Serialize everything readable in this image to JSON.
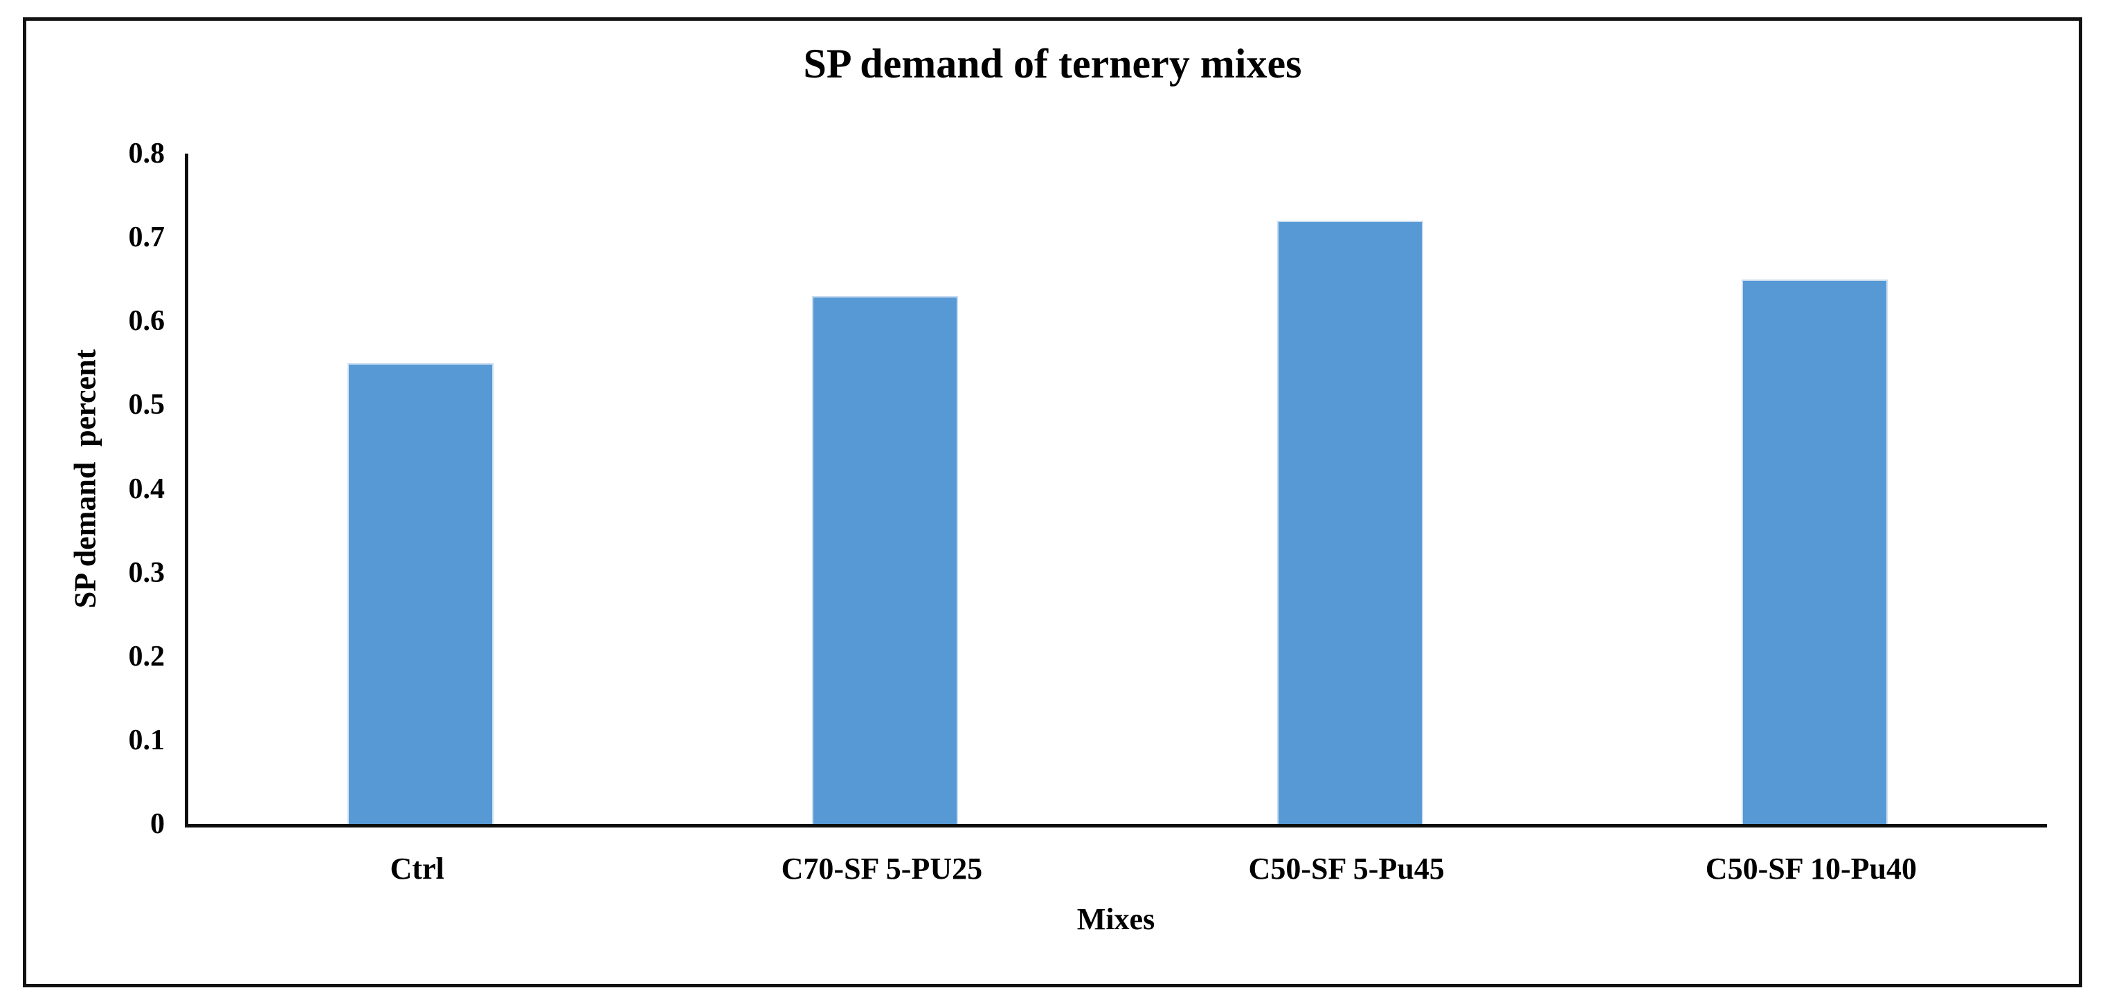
{
  "chart_data": {
    "type": "bar",
    "title": "SP demand of ternery mixes",
    "xlabel": "Mixes",
    "ylabel": "SP demand  percent",
    "categories": [
      "Ctrl",
      "C70-SF 5-PU25",
      "C50-SF 5-Pu45",
      "C50-SF 10-Pu40"
    ],
    "values": [
      0.55,
      0.63,
      0.72,
      0.65
    ],
    "ylim": [
      0,
      0.8
    ],
    "ytick_step": 0.1,
    "yticks": [
      "0",
      "0.1",
      "0.2",
      "0.3",
      "0.4",
      "0.5",
      "0.6",
      "0.7",
      "0.8"
    ],
    "grid": false,
    "legend": "none",
    "colors": {
      "bar_fill": "#5799d5",
      "bar_edge": "#c9dcf0",
      "axis_line": "#0d0d0d",
      "frame_border": "#121212",
      "text": "#000000",
      "background": "#ffffff"
    }
  }
}
